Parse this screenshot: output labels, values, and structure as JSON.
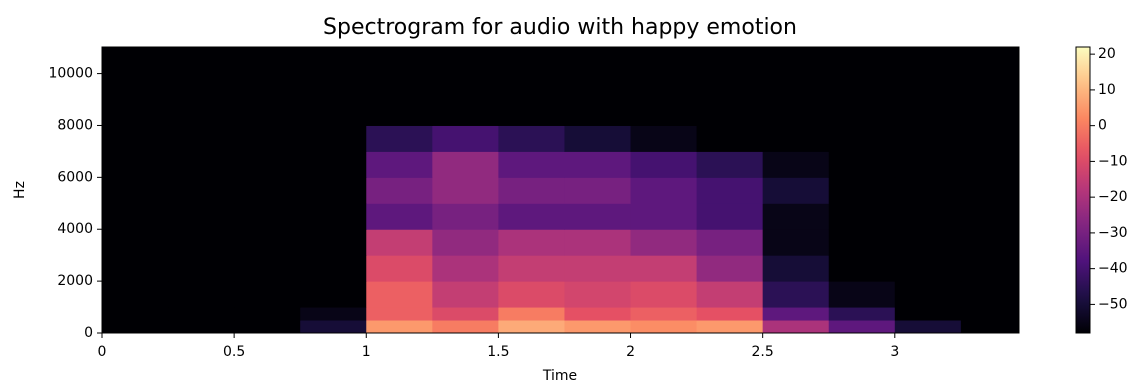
{
  "chart_data": {
    "type": "spectrogram",
    "title": "Spectrogram for audio with happy emotion",
    "xlabel": "Time",
    "ylabel": "Hz",
    "xbins": [
      0,
      0.25,
      0.5,
      0.75,
      1,
      1.25,
      1.5,
      1.75,
      2,
      2.25,
      2.5,
      2.75,
      3,
      3.25,
      3.47
    ],
    "ybins": [
      0,
      500,
      1000,
      2000,
      3000,
      4000,
      5000,
      6000,
      7000,
      8000,
      11025
    ],
    "z": [
      [
        -58,
        -58,
        -58,
        -50,
        5,
        0,
        8,
        5,
        3,
        5,
        -20,
        -35,
        -50,
        -58
      ],
      [
        -58,
        -58,
        -58,
        -55,
        -5,
        -10,
        0,
        -8,
        -5,
        -8,
        -35,
        -45,
        -58,
        -58
      ],
      [
        -58,
        -58,
        -58,
        -58,
        -5,
        -15,
        -10,
        -12,
        -10,
        -15,
        -45,
        -55,
        -58,
        -58
      ],
      [
        -58,
        -58,
        -58,
        -58,
        -10,
        -20,
        -15,
        -15,
        -15,
        -25,
        -50,
        -58,
        -58,
        -58
      ],
      [
        -58,
        -58,
        -58,
        -58,
        -15,
        -25,
        -20,
        -20,
        -25,
        -30,
        -55,
        -58,
        -58,
        -58
      ],
      [
        -58,
        -58,
        -58,
        -58,
        -35,
        -30,
        -35,
        -35,
        -35,
        -40,
        -55,
        -58,
        -58,
        -58
      ],
      [
        -58,
        -58,
        -58,
        -58,
        -30,
        -25,
        -30,
        -30,
        -35,
        -40,
        -50,
        -58,
        -58,
        -58
      ],
      [
        -58,
        -58,
        -58,
        -58,
        -35,
        -25,
        -35,
        -35,
        -40,
        -45,
        -55,
        -58,
        -58,
        -58
      ],
      [
        -58,
        -58,
        -58,
        -58,
        -45,
        -40,
        -45,
        -50,
        -55,
        -58,
        -58,
        -58,
        -58,
        -58
      ],
      [
        -58,
        -58,
        -58,
        -58,
        -58,
        -58,
        -58,
        -58,
        -58,
        -58,
        -58,
        -58,
        -58,
        -58
      ]
    ],
    "colormap": "magma",
    "xlim": [
      0,
      3.47
    ],
    "xticks": [
      0,
      0.5,
      1,
      1.5,
      2,
      2.5,
      3
    ],
    "ylim": [
      0,
      11025
    ],
    "yticks": [
      0,
      2000,
      4000,
      6000,
      8000,
      10000
    ],
    "clim": [
      -58,
      22
    ],
    "cticks": [
      20,
      10,
      0,
      {
        "value": -10,
        "label": "−10"
      },
      {
        "value": -20,
        "label": "−20"
      },
      {
        "value": -30,
        "label": "−30"
      },
      {
        "value": -40,
        "label": "−40"
      },
      {
        "value": -50,
        "label": "−50"
      }
    ]
  }
}
